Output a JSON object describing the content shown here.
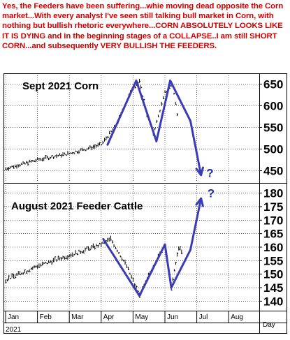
{
  "headline": "Yes, the Feeders have been suffering...whie moving dead opposite the Corn market...With every analyst I've seen still talking bull market in Corn, with nothing but bullish rhetoric everywhere...CORN ABSOLUTELY LOOKS LIKE IT IS DYING and in the beginning stages of a COLLAPSE..I am still SHORT CORN...and subsequently VERY BULLISH THE FEEDERS.",
  "colors": {
    "headline": "#d40000",
    "annotation": "#3b3bb8",
    "question": "#1f2fa8",
    "bars": "#000000"
  },
  "chart_data": [
    {
      "type": "bar",
      "title": "Sept 2021 Corn",
      "ylim": [
        425,
        670
      ],
      "yticks": [
        450,
        500,
        550,
        600,
        650
      ],
      "x_tick_labels": [
        "Jan",
        "Feb",
        "Mar",
        "Apr",
        "May",
        "Jun",
        "Jul",
        "Aug"
      ],
      "series": [
        {
          "values": [
            {
              "x": "Jan",
              "y": 455
            },
            {
              "x": "Feb",
              "y": 475
            },
            {
              "x": "Mar",
              "y": 490
            },
            {
              "x": "Apr 1",
              "y": 510
            },
            {
              "x": "Apr 15",
              "y": 555
            },
            {
              "x": "Apr 30",
              "y": 640
            },
            {
              "x": "May 7",
              "y": 655
            },
            {
              "x": "May 14",
              "y": 580
            },
            {
              "x": "May 20",
              "y": 535
            },
            {
              "x": "Jun 1",
              "y": 630
            },
            {
              "x": "Jun 8",
              "y": 650
            },
            {
              "x": "Jun 14",
              "y": 560
            }
          ]
        }
      ],
      "annotations": [
        {
          "type": "trendline",
          "points": [
            {
              "x": "Apr 7",
              "y": 510
            },
            {
              "x": "May 4",
              "y": 658
            }
          ]
        },
        {
          "type": "trendline",
          "points": [
            {
              "x": "May 4",
              "y": 658
            },
            {
              "x": "May 23",
              "y": 518
            }
          ]
        },
        {
          "type": "trendline",
          "points": [
            {
              "x": "May 23",
              "y": 518
            },
            {
              "x": "Jun 6",
              "y": 658
            }
          ]
        },
        {
          "type": "trendline",
          "points": [
            {
              "x": "Jun 6",
              "y": 658
            },
            {
              "x": "Jun 25",
              "y": 565
            }
          ]
        },
        {
          "type": "arrow",
          "points": [
            {
              "x": "Jun 25",
              "y": 565
            },
            {
              "x": "Jul 5",
              "y": 440
            }
          ]
        },
        {
          "type": "text",
          "label": "?",
          "x": "Jul 10",
          "y": 445
        }
      ]
    },
    {
      "type": "bar",
      "title": "August 2021 Feeder Cattle",
      "ylim": [
        137,
        183
      ],
      "yticks": [
        140,
        145,
        150,
        155,
        160,
        165,
        170,
        175,
        180
      ],
      "x_tick_labels": [
        "Jan",
        "Feb",
        "Mar",
        "Apr",
        "May",
        "Jun",
        "Jul",
        "Aug"
      ],
      "series": [
        {
          "values": [
            {
              "x": "Jan",
              "y": 148
            },
            {
              "x": "Feb",
              "y": 153
            },
            {
              "x": "Mar",
              "y": 157
            },
            {
              "x": "Apr 1",
              "y": 161
            },
            {
              "x": "Apr 10",
              "y": 163
            },
            {
              "x": "Apr 25",
              "y": 153
            },
            {
              "x": "May 7",
              "y": 142
            },
            {
              "x": "May 20",
              "y": 153
            },
            {
              "x": "Jun 1",
              "y": 161
            },
            {
              "x": "Jun 7",
              "y": 145
            },
            {
              "x": "Jun 14",
              "y": 160
            },
            {
              "x": "Jun 18",
              "y": 157
            }
          ]
        }
      ],
      "annotations": [
        {
          "type": "trendline",
          "points": [
            {
              "x": "Apr 3",
              "y": 163
            },
            {
              "x": "May 7",
              "y": 142
            }
          ]
        },
        {
          "type": "trendline",
          "points": [
            {
              "x": "May 7",
              "y": 142
            },
            {
              "x": "Jun 1",
              "y": 161
            }
          ]
        },
        {
          "type": "trendline",
          "points": [
            {
              "x": "Jun 1",
              "y": 161
            },
            {
              "x": "Jun 7",
              "y": 145
            }
          ]
        },
        {
          "type": "trendline",
          "points": [
            {
              "x": "Jun 7",
              "y": 145
            },
            {
              "x": "Jun 25",
              "y": 159
            }
          ]
        },
        {
          "type": "arrow",
          "points": [
            {
              "x": "Jun 25",
              "y": 159
            },
            {
              "x": "Jul 5",
              "y": 178
            }
          ]
        },
        {
          "type": "text",
          "label": "?",
          "x": "Jul 11",
          "y": 180
        }
      ]
    }
  ],
  "footer": {
    "year": "2021",
    "day_label": "Day"
  }
}
